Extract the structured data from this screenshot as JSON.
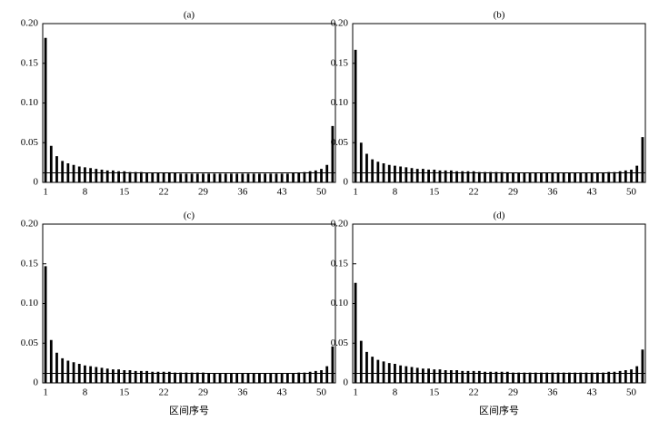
{
  "chart_data": [
    {
      "type": "bar",
      "title": "(a)",
      "color": "#000000",
      "hline": 0.012,
      "x": [
        1,
        2,
        3,
        4,
        5,
        6,
        7,
        8,
        9,
        10,
        11,
        12,
        13,
        14,
        15,
        16,
        17,
        18,
        19,
        20,
        21,
        22,
        23,
        24,
        25,
        26,
        27,
        28,
        29,
        30,
        31,
        32,
        33,
        34,
        35,
        36,
        37,
        38,
        39,
        40,
        41,
        42,
        43,
        44,
        45,
        46,
        47,
        48,
        49,
        50,
        51,
        52
      ],
      "values": [
        0.182,
        0.046,
        0.033,
        0.027,
        0.024,
        0.022,
        0.02,
        0.019,
        0.018,
        0.017,
        0.016,
        0.015,
        0.015,
        0.014,
        0.014,
        0.013,
        0.013,
        0.013,
        0.012,
        0.012,
        0.012,
        0.012,
        0.012,
        0.012,
        0.011,
        0.011,
        0.011,
        0.011,
        0.011,
        0.011,
        0.011,
        0.011,
        0.011,
        0.011,
        0.011,
        0.011,
        0.011,
        0.011,
        0.011,
        0.011,
        0.011,
        0.011,
        0.011,
        0.011,
        0.012,
        0.012,
        0.013,
        0.014,
        0.015,
        0.017,
        0.022,
        0.071
      ],
      "xlim": [
        0.5,
        52.5
      ],
      "xticks": [
        1,
        8,
        15,
        22,
        29,
        36,
        43,
        50
      ],
      "ylim": [
        0,
        0.2
      ],
      "yticks": [
        0,
        0.05,
        {
          "value": 0.1,
          "label": "0.10"
        },
        0.15,
        {
          "value": 0.2,
          "label": "0.20"
        }
      ]
    },
    {
      "type": "bar",
      "title": "(b)",
      "color": "#000000",
      "hline": 0.012,
      "x": [
        1,
        2,
        3,
        4,
        5,
        6,
        7,
        8,
        9,
        10,
        11,
        12,
        13,
        14,
        15,
        16,
        17,
        18,
        19,
        20,
        21,
        22,
        23,
        24,
        25,
        26,
        27,
        28,
        29,
        30,
        31,
        32,
        33,
        34,
        35,
        36,
        37,
        38,
        39,
        40,
        41,
        42,
        43,
        44,
        45,
        46,
        47,
        48,
        49,
        50,
        51,
        52
      ],
      "values": [
        0.167,
        0.05,
        0.036,
        0.029,
        0.026,
        0.024,
        0.022,
        0.021,
        0.02,
        0.019,
        0.018,
        0.017,
        0.017,
        0.016,
        0.016,
        0.015,
        0.015,
        0.015,
        0.014,
        0.014,
        0.014,
        0.014,
        0.013,
        0.013,
        0.013,
        0.013,
        0.013,
        0.012,
        0.012,
        0.012,
        0.012,
        0.012,
        0.012,
        0.012,
        0.012,
        0.012,
        0.012,
        0.012,
        0.012,
        0.012,
        0.012,
        0.012,
        0.012,
        0.012,
        0.012,
        0.013,
        0.013,
        0.014,
        0.015,
        0.016,
        0.021,
        0.057
      ],
      "xlim": [
        0.5,
        52.5
      ],
      "xticks": [
        1,
        8,
        15,
        22,
        29,
        36,
        43,
        50
      ],
      "ylim": [
        0,
        0.2
      ],
      "yticks": [
        0,
        0.05,
        {
          "value": 0.1,
          "label": "0.10"
        },
        0.15,
        {
          "value": 0.2,
          "label": "0.20"
        }
      ]
    },
    {
      "type": "bar",
      "title": "(c)",
      "xlabel": "区间序号",
      "color": "#000000",
      "hline": 0.012,
      "x": [
        1,
        2,
        3,
        4,
        5,
        6,
        7,
        8,
        9,
        10,
        11,
        12,
        13,
        14,
        15,
        16,
        17,
        18,
        19,
        20,
        21,
        22,
        23,
        24,
        25,
        26,
        27,
        28,
        29,
        30,
        31,
        32,
        33,
        34,
        35,
        36,
        37,
        38,
        39,
        40,
        41,
        42,
        43,
        44,
        45,
        46,
        47,
        48,
        49,
        50,
        51,
        52
      ],
      "values": [
        0.147,
        0.054,
        0.038,
        0.031,
        0.028,
        0.026,
        0.024,
        0.022,
        0.021,
        0.02,
        0.019,
        0.018,
        0.017,
        0.017,
        0.016,
        0.016,
        0.015,
        0.015,
        0.015,
        0.014,
        0.014,
        0.014,
        0.014,
        0.013,
        0.013,
        0.013,
        0.013,
        0.013,
        0.013,
        0.012,
        0.012,
        0.012,
        0.012,
        0.012,
        0.012,
        0.012,
        0.012,
        0.012,
        0.012,
        0.012,
        0.012,
        0.012,
        0.012,
        0.012,
        0.012,
        0.013,
        0.013,
        0.014,
        0.015,
        0.016,
        0.021,
        0.046
      ],
      "xlim": [
        0.5,
        52.5
      ],
      "xticks": [
        1,
        8,
        15,
        22,
        29,
        36,
        43,
        50
      ],
      "ylim": [
        0,
        0.2
      ],
      "yticks": [
        0,
        0.05,
        {
          "value": 0.1,
          "label": "0.10"
        },
        0.15,
        {
          "value": 0.2,
          "label": "0.20"
        }
      ]
    },
    {
      "type": "bar",
      "title": "(d)",
      "xlabel": "区间序号",
      "color": "#000000",
      "hline": 0.012,
      "x": [
        1,
        2,
        3,
        4,
        5,
        6,
        7,
        8,
        9,
        10,
        11,
        12,
        13,
        14,
        15,
        16,
        17,
        18,
        19,
        20,
        21,
        22,
        23,
        24,
        25,
        26,
        27,
        28,
        29,
        30,
        31,
        32,
        33,
        34,
        35,
        36,
        37,
        38,
        39,
        40,
        41,
        42,
        43,
        44,
        45,
        46,
        47,
        48,
        49,
        50,
        51,
        52
      ],
      "values": [
        0.126,
        0.053,
        0.039,
        0.033,
        0.029,
        0.027,
        0.025,
        0.024,
        0.022,
        0.021,
        0.02,
        0.019,
        0.018,
        0.018,
        0.017,
        0.017,
        0.016,
        0.016,
        0.016,
        0.015,
        0.015,
        0.015,
        0.015,
        0.014,
        0.014,
        0.014,
        0.014,
        0.014,
        0.013,
        0.013,
        0.013,
        0.013,
        0.013,
        0.013,
        0.013,
        0.013,
        0.013,
        0.013,
        0.013,
        0.013,
        0.013,
        0.013,
        0.013,
        0.013,
        0.013,
        0.014,
        0.014,
        0.015,
        0.016,
        0.017,
        0.021,
        0.042
      ],
      "xlim": [
        0.5,
        52.5
      ],
      "xticks": [
        1,
        8,
        15,
        22,
        29,
        36,
        43,
        50
      ],
      "ylim": [
        0,
        0.2
      ],
      "yticks": [
        0,
        0.05,
        {
          "value": 0.1,
          "label": "0.10"
        },
        0.15,
        {
          "value": 0.2,
          "label": "0.20"
        }
      ]
    }
  ]
}
